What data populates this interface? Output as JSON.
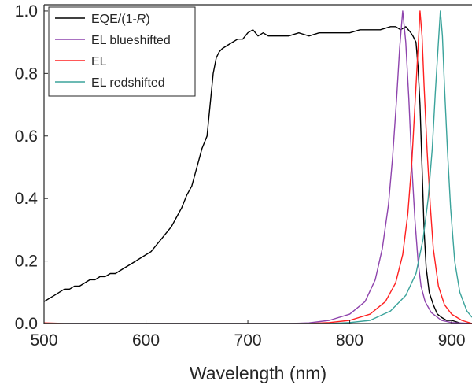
{
  "chart_data": {
    "type": "line",
    "title": "",
    "xlabel": "Wavelength (nm)",
    "ylabel": "",
    "xlim": [
      500,
      920
    ],
    "ylim": [
      0,
      1.02
    ],
    "xticks": [
      "500",
      "600",
      "700",
      "800",
      "900"
    ],
    "yticks": [
      "0.0",
      "0.2",
      "0.4",
      "0.6",
      "0.8",
      "1.0"
    ],
    "grid": false,
    "legend_position": "top-left",
    "legend": [
      {
        "label": "EQE/(1-",
        "label_italic": "R",
        "label_suffix": ")",
        "color": "#000000"
      },
      {
        "label": "EL blueshifted",
        "color": "#8e44ad"
      },
      {
        "label": "EL",
        "color": "#ff2020"
      },
      {
        "label": "EL redshifted",
        "color": "#3ba39b"
      }
    ],
    "series": [
      {
        "color": "#000000",
        "x": [
          500,
          505,
          510,
          515,
          520,
          525,
          530,
          535,
          540,
          545,
          550,
          555,
          560,
          565,
          570,
          575,
          580,
          585,
          590,
          595,
          600,
          605,
          610,
          615,
          620,
          625,
          630,
          635,
          640,
          645,
          650,
          655,
          660,
          663,
          666,
          669,
          672,
          675,
          680,
          685,
          690,
          695,
          700,
          705,
          710,
          715,
          720,
          730,
          740,
          750,
          760,
          770,
          780,
          790,
          800,
          810,
          820,
          830,
          840,
          845,
          850,
          855,
          860,
          862,
          865,
          867,
          869,
          871,
          873,
          875,
          878,
          882,
          886,
          890,
          895,
          900,
          910,
          920
        ],
        "y": [
          0.07,
          0.08,
          0.09,
          0.1,
          0.11,
          0.11,
          0.12,
          0.12,
          0.13,
          0.14,
          0.14,
          0.15,
          0.15,
          0.16,
          0.16,
          0.17,
          0.18,
          0.19,
          0.2,
          0.21,
          0.22,
          0.23,
          0.25,
          0.27,
          0.29,
          0.31,
          0.34,
          0.37,
          0.41,
          0.44,
          0.5,
          0.56,
          0.6,
          0.7,
          0.8,
          0.85,
          0.87,
          0.88,
          0.89,
          0.9,
          0.91,
          0.91,
          0.93,
          0.94,
          0.92,
          0.93,
          0.92,
          0.92,
          0.92,
          0.93,
          0.92,
          0.93,
          0.93,
          0.93,
          0.93,
          0.94,
          0.94,
          0.94,
          0.95,
          0.95,
          0.94,
          0.95,
          0.93,
          0.92,
          0.9,
          0.82,
          0.7,
          0.5,
          0.3,
          0.18,
          0.1,
          0.06,
          0.03,
          0.02,
          0.01,
          0.01,
          0.0,
          0.0
        ]
      },
      {
        "color": "#8e44ad",
        "x": [
          500,
          740,
          760,
          780,
          800,
          815,
          825,
          832,
          838,
          842,
          846,
          849,
          852,
          855,
          858,
          861,
          864,
          867,
          870,
          874,
          880,
          890,
          900,
          920
        ],
        "y": [
          0.0,
          0.0,
          0.002,
          0.01,
          0.03,
          0.07,
          0.14,
          0.24,
          0.38,
          0.53,
          0.72,
          0.88,
          1.0,
          0.9,
          0.72,
          0.5,
          0.33,
          0.2,
          0.12,
          0.07,
          0.035,
          0.01,
          0.003,
          0.0
        ]
      },
      {
        "color": "#ff2020",
        "x": [
          500,
          520,
          760,
          780,
          800,
          820,
          835,
          845,
          852,
          857,
          861,
          864,
          867,
          869,
          871,
          873,
          876,
          879,
          882,
          887,
          893,
          900,
          910,
          920
        ],
        "y": [
          0.002,
          0.0,
          0.0,
          0.003,
          0.01,
          0.03,
          0.07,
          0.13,
          0.22,
          0.35,
          0.52,
          0.7,
          0.88,
          1.0,
          0.92,
          0.76,
          0.55,
          0.38,
          0.24,
          0.12,
          0.06,
          0.03,
          0.01,
          0.0
        ]
      },
      {
        "color": "#3ba39b",
        "x": [
          500,
          780,
          800,
          820,
          840,
          855,
          865,
          872,
          877,
          881,
          884,
          887,
          889,
          891,
          893,
          896,
          899,
          903,
          908,
          915,
          920
        ],
        "y": [
          0.0,
          0.0,
          0.003,
          0.01,
          0.04,
          0.09,
          0.16,
          0.27,
          0.4,
          0.56,
          0.74,
          0.9,
          1.0,
          0.92,
          0.76,
          0.55,
          0.37,
          0.2,
          0.1,
          0.04,
          0.02
        ]
      }
    ]
  }
}
